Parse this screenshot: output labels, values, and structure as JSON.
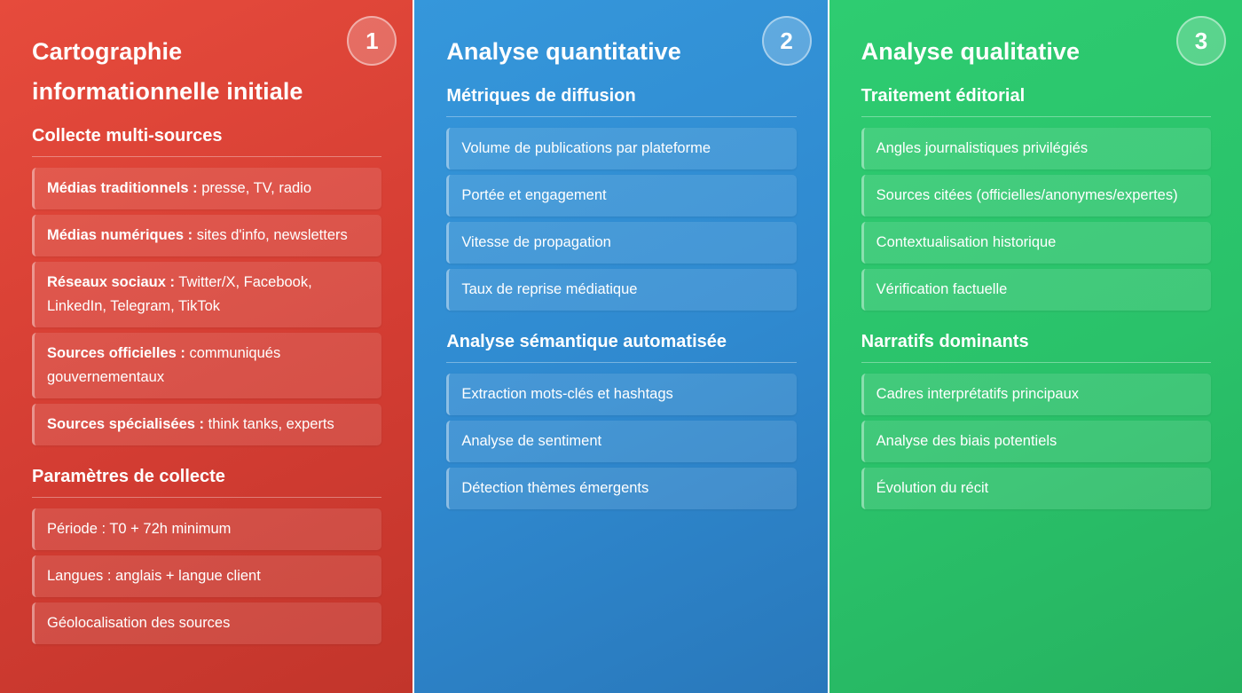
{
  "columns": [
    {
      "badge": "1",
      "title": "Cartographie informationnelle initiale",
      "sections": [
        {
          "title": "Collecte multi-sources",
          "items": [
            {
              "bold": "Médias traditionnels :",
              "text": " presse, TV, radio"
            },
            {
              "bold": "Médias numériques :",
              "text": " sites d'info, newsletters"
            },
            {
              "bold": "Réseaux sociaux :",
              "text": " Twitter/X, Facebook, LinkedIn, Telegram, TikTok"
            },
            {
              "bold": "Sources officielles :",
              "text": " communiqués gouvernementaux"
            },
            {
              "bold": "Sources spécialisées :",
              "text": " think tanks, experts"
            }
          ]
        },
        {
          "title": "Paramètres de collecte",
          "items": [
            {
              "bold": "",
              "text": "Période : T0 + 72h minimum"
            },
            {
              "bold": "",
              "text": "Langues : anglais + langue client"
            },
            {
              "bold": "",
              "text": "Géolocalisation des sources"
            }
          ]
        }
      ]
    },
    {
      "badge": "2",
      "title": "Analyse quantitative",
      "sections": [
        {
          "title": "Métriques de diffusion",
          "items": [
            {
              "bold": "",
              "text": "Volume de publications par plateforme"
            },
            {
              "bold": "",
              "text": "Portée et engagement"
            },
            {
              "bold": "",
              "text": "Vitesse de propagation"
            },
            {
              "bold": "",
              "text": "Taux de reprise médiatique"
            }
          ]
        },
        {
          "title": "Analyse sémantique automatisée",
          "items": [
            {
              "bold": "",
              "text": "Extraction mots-clés et hashtags"
            },
            {
              "bold": "",
              "text": "Analyse de sentiment"
            },
            {
              "bold": "",
              "text": "Détection thèmes émergents"
            }
          ]
        }
      ]
    },
    {
      "badge": "3",
      "title": "Analyse qualitative",
      "sections": [
        {
          "title": "Traitement éditorial",
          "items": [
            {
              "bold": "",
              "text": "Angles journalistiques privilégiés"
            },
            {
              "bold": "",
              "text": "Sources citées (officielles/anonymes/expertes)"
            },
            {
              "bold": "",
              "text": "Contextualisation historique"
            },
            {
              "bold": "",
              "text": "Vérification factuelle"
            }
          ]
        },
        {
          "title": "Narratifs dominants",
          "items": [
            {
              "bold": "",
              "text": "Cadres interprétatifs principaux"
            },
            {
              "bold": "",
              "text": "Analyse des biais potentiels"
            },
            {
              "bold": "",
              "text": "Évolution du récit"
            }
          ]
        }
      ]
    }
  ]
}
